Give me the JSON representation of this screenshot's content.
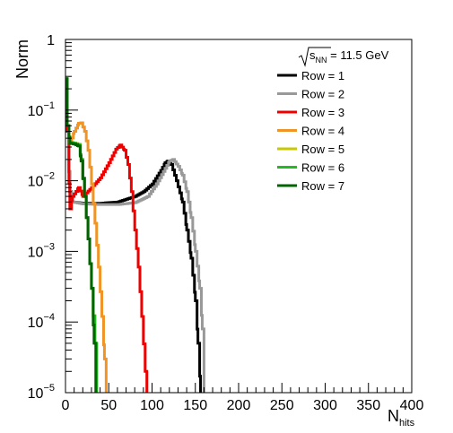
{
  "chart_data": {
    "type": "line",
    "xlabel": "N",
    "xlabel_sub": "hits",
    "ylabel": "Norm",
    "xlim": [
      0,
      400
    ],
    "ylim": [
      1e-05,
      1
    ],
    "y_scale": "log",
    "grid": false,
    "legend_position": "top-right",
    "annotation": {
      "prefix": "s",
      "sub": "NN",
      "suffix": " = 11.5 GeV"
    },
    "x_ticks": [
      0,
      50,
      100,
      150,
      200,
      250,
      300,
      350,
      400
    ],
    "x_tick_labels": [
      "0",
      "50",
      "100",
      "150",
      "200",
      "250",
      "300",
      "350",
      "400"
    ],
    "y_ticks": [
      {
        "value": 1e-05,
        "base": "10",
        "exp": "−5"
      },
      {
        "value": 0.0001,
        "base": "10",
        "exp": "−4"
      },
      {
        "value": 0.001,
        "base": "10",
        "exp": "−3"
      },
      {
        "value": 0.01,
        "base": "10",
        "exp": "−2"
      },
      {
        "value": 0.1,
        "base": "10",
        "exp": "−1"
      },
      {
        "value": 1,
        "base": "1",
        "exp": ""
      }
    ],
    "series": [
      {
        "name": "Row = 1",
        "color": "#000000",
        "points": [
          [
            0,
            0.25
          ],
          [
            2,
            0.05
          ],
          [
            5,
            0.007
          ],
          [
            8,
            0.005
          ],
          [
            20,
            0.0048
          ],
          [
            40,
            0.0048
          ],
          [
            60,
            0.005
          ],
          [
            80,
            0.006
          ],
          [
            90,
            0.007
          ],
          [
            100,
            0.009
          ],
          [
            110,
            0.014
          ],
          [
            115,
            0.018
          ],
          [
            118,
            0.019
          ],
          [
            122,
            0.017
          ],
          [
            128,
            0.01
          ],
          [
            135,
            0.005
          ],
          [
            140,
            0.002
          ],
          [
            145,
            0.0008
          ],
          [
            150,
            0.0002
          ],
          [
            153,
            5e-05
          ],
          [
            156,
            1e-05
          ]
        ]
      },
      {
        "name": "Row = 2",
        "color": "#999999",
        "points": [
          [
            0,
            0.2
          ],
          [
            2,
            0.05
          ],
          [
            5,
            0.007
          ],
          [
            8,
            0.005
          ],
          [
            20,
            0.0047
          ],
          [
            40,
            0.0046
          ],
          [
            60,
            0.0046
          ],
          [
            80,
            0.0049
          ],
          [
            95,
            0.006
          ],
          [
            105,
            0.009
          ],
          [
            115,
            0.015
          ],
          [
            120,
            0.019
          ],
          [
            124,
            0.02
          ],
          [
            130,
            0.016
          ],
          [
            135,
            0.012
          ],
          [
            140,
            0.007
          ],
          [
            145,
            0.003
          ],
          [
            150,
            0.001
          ],
          [
            155,
            0.0003
          ],
          [
            158,
            8e-05
          ],
          [
            160,
            1e-05
          ]
        ]
      },
      {
        "name": "Row = 3",
        "color": "#ee0000",
        "points": [
          [
            0,
            0.22
          ],
          [
            2,
            0.05
          ],
          [
            5,
            0.004
          ],
          [
            8,
            0.006
          ],
          [
            15,
            0.008
          ],
          [
            20,
            0.006
          ],
          [
            30,
            0.008
          ],
          [
            40,
            0.011
          ],
          [
            50,
            0.018
          ],
          [
            58,
            0.028
          ],
          [
            63,
            0.032
          ],
          [
            68,
            0.027
          ],
          [
            72,
            0.017
          ],
          [
            76,
            0.007
          ],
          [
            80,
            0.002
          ],
          [
            84,
            0.0006
          ],
          [
            88,
            0.00012
          ],
          [
            92,
            2e-05
          ],
          [
            94,
            1e-05
          ]
        ]
      },
      {
        "name": "Row = 4",
        "color": "#f09426",
        "points": [
          [
            0,
            0.25
          ],
          [
            2,
            0.06
          ],
          [
            5,
            0.035
          ],
          [
            10,
            0.05
          ],
          [
            15,
            0.065
          ],
          [
            18,
            0.066
          ],
          [
            22,
            0.05
          ],
          [
            26,
            0.027
          ],
          [
            30,
            0.009
          ],
          [
            34,
            0.0025
          ],
          [
            38,
            0.0006
          ],
          [
            42,
            0.00012
          ],
          [
            45,
            3e-05
          ],
          [
            47,
            1e-05
          ]
        ]
      },
      {
        "name": "Row = 5",
        "color": "#c8c800",
        "points": [
          [
            0,
            0.26
          ],
          [
            2,
            0.06
          ],
          [
            5,
            0.035
          ],
          [
            10,
            0.034
          ],
          [
            15,
            0.033
          ],
          [
            18,
            0.02
          ],
          [
            22,
            0.006
          ],
          [
            26,
            0.0015
          ],
          [
            30,
            0.0003
          ],
          [
            34,
            5e-05
          ],
          [
            36,
            1e-05
          ]
        ]
      },
      {
        "name": "Row = 6",
        "color": "#22bb22",
        "points": [
          [
            0,
            0.27
          ],
          [
            2,
            0.06
          ],
          [
            5,
            0.035
          ],
          [
            10,
            0.034
          ],
          [
            15,
            0.032
          ],
          [
            18,
            0.02
          ],
          [
            22,
            0.006
          ],
          [
            26,
            0.0015
          ],
          [
            30,
            0.0003
          ],
          [
            34,
            5e-05
          ],
          [
            36,
            1e-05
          ]
        ]
      },
      {
        "name": "Row = 7",
        "color": "#006400",
        "points": [
          [
            0,
            0.28
          ],
          [
            2,
            0.06
          ],
          [
            5,
            0.034
          ],
          [
            10,
            0.033
          ],
          [
            15,
            0.031
          ],
          [
            18,
            0.019
          ],
          [
            22,
            0.006
          ],
          [
            26,
            0.0015
          ],
          [
            30,
            0.0003
          ],
          [
            33,
            5e-05
          ],
          [
            35,
            1e-05
          ]
        ]
      }
    ]
  }
}
